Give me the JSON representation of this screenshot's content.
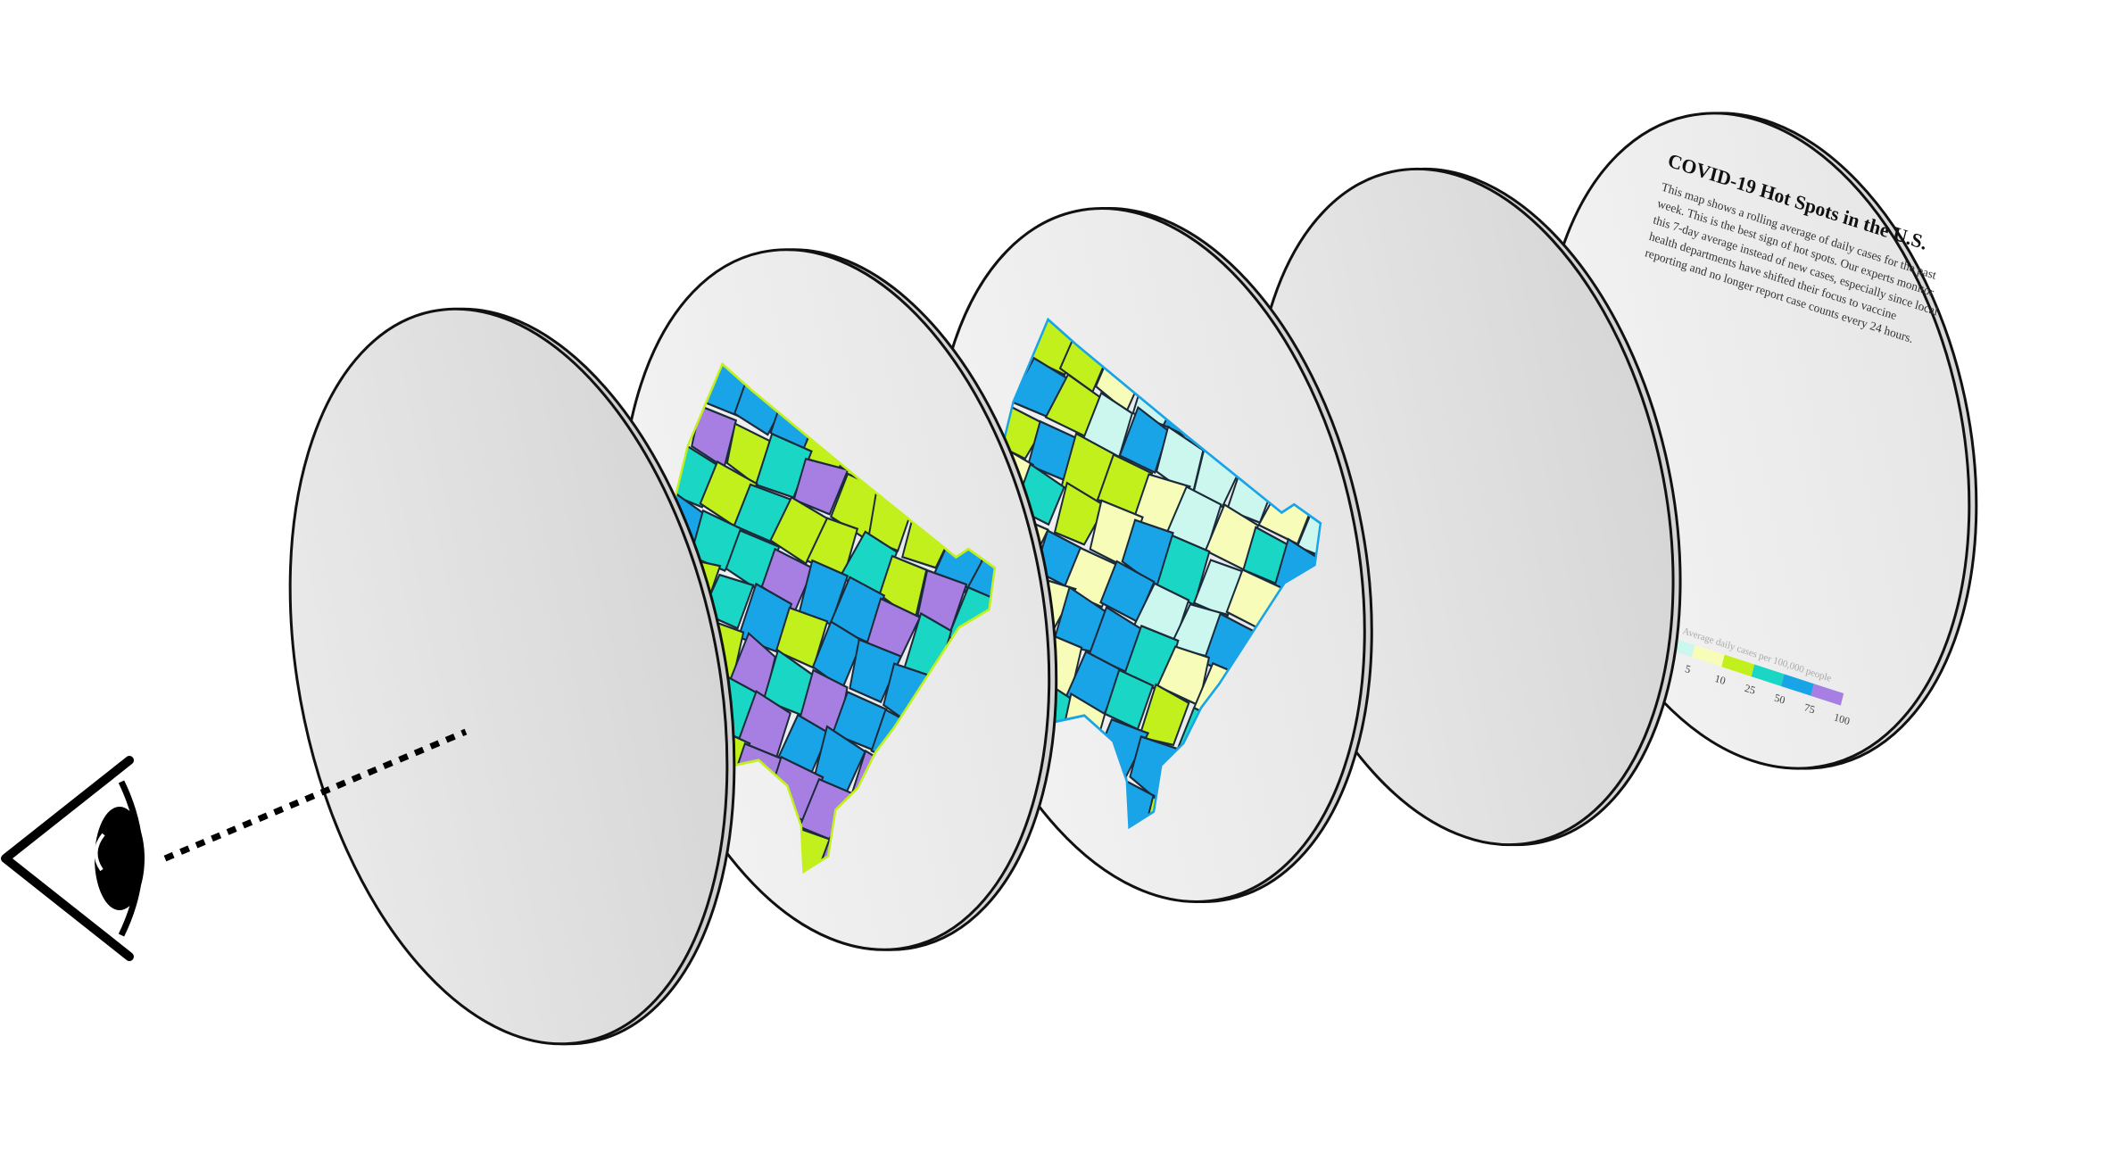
{
  "panel5": {
    "title": "COVID-19 Hot Spots in the U.S.",
    "body_lines": [
      "This map shows a rolling average of daily cases for the past",
      "week. This is the best sign of hot spots. Our experts monitor",
      "this 7-day average instead of new cases, especially since local",
      "health departments have shifted their focus to vaccine",
      "reporting and no longer report case counts every 24 hours."
    ],
    "legend": {
      "title": "Average daily cases per 100,000 people",
      "ticks": [
        "5",
        "10",
        "25",
        "50",
        "75",
        "100"
      ],
      "colors": [
        "#ccf7ef",
        "#f7fcb9",
        "#c2f01c",
        "#19d7c4",
        "#1aa4e8",
        "#a77fe3"
      ]
    }
  },
  "colors": {
    "disc_fill_front": "#d9d9d9",
    "disc_fill": "#ececec",
    "disc_stroke": "#111111",
    "sight_line": "#000000"
  },
  "map_layer_1": {
    "palette": [
      "#19d7c4",
      "#c2f01c",
      "#1aa4e8",
      "#a77fe3"
    ]
  },
  "map_layer_2": {
    "palette": [
      "#ccf7ef",
      "#f7fcb9",
      "#c2f01c",
      "#19d7c4",
      "#1aa4e8"
    ]
  }
}
